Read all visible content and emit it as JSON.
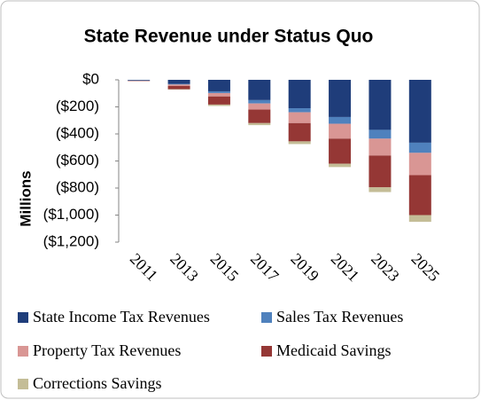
{
  "chart_data": {
    "type": "stacked-bar",
    "title": "State Revenue under Status Quo",
    "y_label": "Millions",
    "categories": [
      "2011",
      "2013",
      "2015",
      "2017",
      "2019",
      "2021",
      "2023",
      "2025"
    ],
    "series": [
      {
        "name": "State Income Tax Revenues",
        "color": "#1f3d7a",
        "values": [
          -5,
          -30,
          -85,
          -150,
          -210,
          -275,
          -370,
          -465
        ]
      },
      {
        "name": "Sales Tax Revenues",
        "color": "#4f81bd",
        "values": [
          -1,
          -5,
          -13,
          -25,
          -30,
          -50,
          -65,
          -75
        ]
      },
      {
        "name": "Property Tax Revenues",
        "color": "#d99694",
        "values": [
          -2,
          -10,
          -25,
          -45,
          -80,
          -110,
          -125,
          -165
        ]
      },
      {
        "name": "Medicaid Savings",
        "color": "#953735",
        "values": [
          -2,
          -25,
          -60,
          -100,
          -135,
          -185,
          -235,
          -295
        ]
      },
      {
        "name": "Corrections Savings",
        "color": "#c4bd97",
        "values": [
          0,
          -3,
          -10,
          -15,
          -20,
          -25,
          -35,
          -50
        ]
      }
    ],
    "ylim": [
      -1200,
      0
    ],
    "yticks": [
      {
        "value": 0,
        "label": "$0"
      },
      {
        "value": -200,
        "label": "($200)"
      },
      {
        "value": -400,
        "label": "($400)"
      },
      {
        "value": -600,
        "label": "($600)"
      },
      {
        "value": -800,
        "label": "($800)"
      },
      {
        "value": -1000,
        "label": "($1,000)"
      },
      {
        "value": -1200,
        "label": "($1,200)"
      }
    ],
    "grid": false
  }
}
